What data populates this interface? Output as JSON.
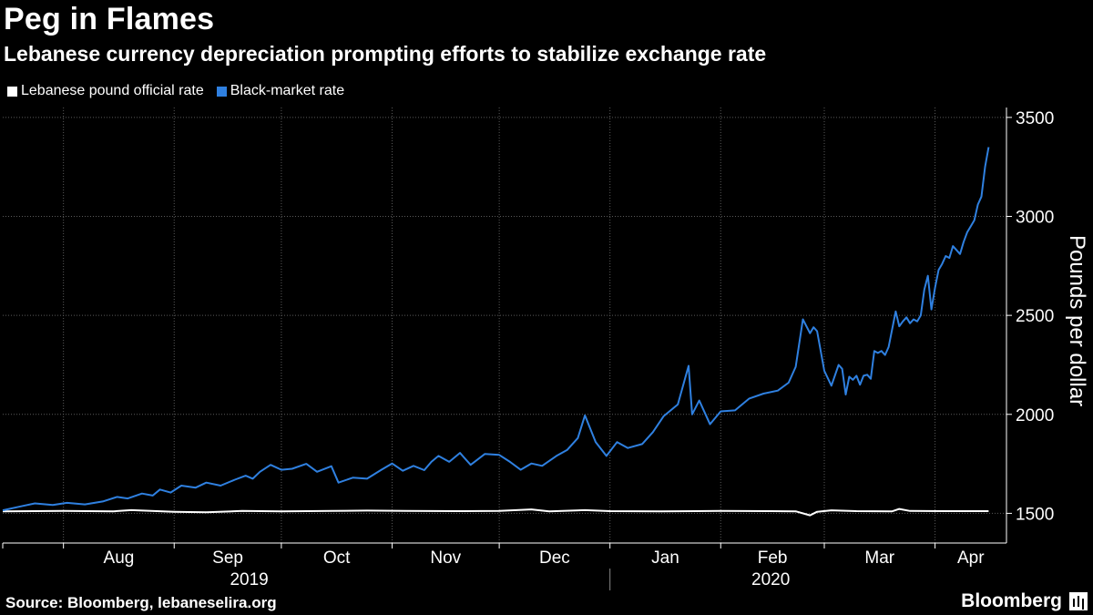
{
  "header": {
    "title": "Peg in Flames",
    "subtitle": "Lebanese currency depreciation prompting efforts to stabilize exchange rate"
  },
  "legend": [
    {
      "label": "Lebanese pound official rate",
      "color": "#ffffff"
    },
    {
      "label": "Black-market rate",
      "color": "#2f80e0"
    }
  ],
  "footer": {
    "source": "Source: Bloomberg, lebaneselira.org",
    "brand": "Bloomberg",
    "brand_icon": "bloomberg-terminal-icon"
  },
  "chart_data": {
    "type": "line",
    "ylabel": "Pounds per dollar",
    "ylim": [
      1350,
      3550
    ],
    "yticks": [
      1500,
      2000,
      2500,
      3000,
      3500
    ],
    "xlim": [
      "2019-07-15",
      "2020-04-21"
    ],
    "month_ticks": [
      {
        "label": "Aug",
        "date": "2019-08-01"
      },
      {
        "label": "Sep",
        "date": "2019-09-01"
      },
      {
        "label": "Oct",
        "date": "2019-10-01"
      },
      {
        "label": "Nov",
        "date": "2019-11-01"
      },
      {
        "label": "Dec",
        "date": "2019-12-01"
      },
      {
        "label": "Jan",
        "date": "2020-01-01"
      },
      {
        "label": "Feb",
        "date": "2020-02-01"
      },
      {
        "label": "Mar",
        "date": "2020-03-01"
      },
      {
        "label": "Apr",
        "date": "2020-04-01"
      }
    ],
    "year_labels": [
      {
        "label": "2019",
        "date": "2019-09-22"
      },
      {
        "label": "2020",
        "date": "2020-02-15"
      }
    ],
    "year_divider": "2020-01-01",
    "grid": true,
    "legend_position": "top-left",
    "series": [
      {
        "name": "Lebanese pound official rate",
        "color": "#ffffff",
        "points": [
          [
            "2019-07-15",
            1510
          ],
          [
            "2019-08-01",
            1512
          ],
          [
            "2019-08-15",
            1510
          ],
          [
            "2019-08-20",
            1516
          ],
          [
            "2019-09-01",
            1508
          ],
          [
            "2019-09-10",
            1505
          ],
          [
            "2019-09-20",
            1512
          ],
          [
            "2019-10-01",
            1510
          ],
          [
            "2019-10-15",
            1512
          ],
          [
            "2019-10-25",
            1514
          ],
          [
            "2019-11-05",
            1512
          ],
          [
            "2019-11-20",
            1511
          ],
          [
            "2019-12-01",
            1512
          ],
          [
            "2019-12-10",
            1520
          ],
          [
            "2019-12-15",
            1510
          ],
          [
            "2019-12-25",
            1516
          ],
          [
            "2020-01-01",
            1511
          ],
          [
            "2020-01-15",
            1510
          ],
          [
            "2020-02-01",
            1512
          ],
          [
            "2020-02-15",
            1511
          ],
          [
            "2020-02-22",
            1510
          ],
          [
            "2020-02-26",
            1490
          ],
          [
            "2020-02-28",
            1508
          ],
          [
            "2020-03-03",
            1515
          ],
          [
            "2020-03-10",
            1511
          ],
          [
            "2020-03-20",
            1510
          ],
          [
            "2020-03-22",
            1522
          ],
          [
            "2020-03-25",
            1512
          ],
          [
            "2020-04-05",
            1511
          ],
          [
            "2020-04-16",
            1511
          ]
        ]
      },
      {
        "name": "Black-market rate",
        "color": "#2f80e0",
        "points": [
          [
            "2019-07-15",
            1515
          ],
          [
            "2019-07-20",
            1535
          ],
          [
            "2019-07-24",
            1550
          ],
          [
            "2019-07-29",
            1542
          ],
          [
            "2019-08-02",
            1553
          ],
          [
            "2019-08-07",
            1545
          ],
          [
            "2019-08-12",
            1560
          ],
          [
            "2019-08-16",
            1583
          ],
          [
            "2019-08-19",
            1575
          ],
          [
            "2019-08-23",
            1600
          ],
          [
            "2019-08-26",
            1590
          ],
          [
            "2019-08-28",
            1620
          ],
          [
            "2019-08-31",
            1605
          ],
          [
            "2019-09-03",
            1640
          ],
          [
            "2019-09-07",
            1630
          ],
          [
            "2019-09-10",
            1655
          ],
          [
            "2019-09-14",
            1640
          ],
          [
            "2019-09-18",
            1670
          ],
          [
            "2019-09-21",
            1690
          ],
          [
            "2019-09-23",
            1675
          ],
          [
            "2019-09-25",
            1710
          ],
          [
            "2019-09-28",
            1745
          ],
          [
            "2019-10-01",
            1720
          ],
          [
            "2019-10-04",
            1725
          ],
          [
            "2019-10-08",
            1750
          ],
          [
            "2019-10-11",
            1710
          ],
          [
            "2019-10-15",
            1738
          ],
          [
            "2019-10-17",
            1655
          ],
          [
            "2019-10-21",
            1680
          ],
          [
            "2019-10-25",
            1675
          ],
          [
            "2019-10-29",
            1720
          ],
          [
            "2019-11-01",
            1752
          ],
          [
            "2019-11-04",
            1715
          ],
          [
            "2019-11-07",
            1740
          ],
          [
            "2019-11-10",
            1718
          ],
          [
            "2019-11-12",
            1760
          ],
          [
            "2019-11-14",
            1790
          ],
          [
            "2019-11-17",
            1760
          ],
          [
            "2019-11-20",
            1805
          ],
          [
            "2019-11-23",
            1745
          ],
          [
            "2019-11-27",
            1800
          ],
          [
            "2019-12-01",
            1795
          ],
          [
            "2019-12-04",
            1760
          ],
          [
            "2019-12-07",
            1720
          ],
          [
            "2019-12-10",
            1752
          ],
          [
            "2019-12-13",
            1740
          ],
          [
            "2019-12-17",
            1790
          ],
          [
            "2019-12-20",
            1820
          ],
          [
            "2019-12-23",
            1880
          ],
          [
            "2019-12-25",
            1995
          ],
          [
            "2019-12-28",
            1860
          ],
          [
            "2019-12-31",
            1790
          ],
          [
            "2020-01-03",
            1860
          ],
          [
            "2020-01-06",
            1830
          ],
          [
            "2020-01-10",
            1850
          ],
          [
            "2020-01-13",
            1910
          ],
          [
            "2020-01-16",
            1990
          ],
          [
            "2020-01-20",
            2050
          ],
          [
            "2020-01-23",
            2245
          ],
          [
            "2020-01-24",
            2000
          ],
          [
            "2020-01-26",
            2070
          ],
          [
            "2020-01-29",
            1950
          ],
          [
            "2020-02-01",
            2015
          ],
          [
            "2020-02-05",
            2020
          ],
          [
            "2020-02-09",
            2080
          ],
          [
            "2020-02-13",
            2105
          ],
          [
            "2020-02-17",
            2120
          ],
          [
            "2020-02-20",
            2160
          ],
          [
            "2020-02-22",
            2240
          ],
          [
            "2020-02-24",
            2480
          ],
          [
            "2020-02-26",
            2410
          ],
          [
            "2020-02-27",
            2440
          ],
          [
            "2020-02-28",
            2420
          ],
          [
            "2020-03-01",
            2220
          ],
          [
            "2020-03-03",
            2145
          ],
          [
            "2020-03-05",
            2250
          ],
          [
            "2020-03-06",
            2230
          ],
          [
            "2020-03-07",
            2100
          ],
          [
            "2020-03-08",
            2190
          ],
          [
            "2020-03-09",
            2175
          ],
          [
            "2020-03-10",
            2195
          ],
          [
            "2020-03-11",
            2150
          ],
          [
            "2020-03-12",
            2195
          ],
          [
            "2020-03-13",
            2200
          ],
          [
            "2020-03-14",
            2180
          ],
          [
            "2020-03-15",
            2320
          ],
          [
            "2020-03-16",
            2310
          ],
          [
            "2020-03-17",
            2320
          ],
          [
            "2020-03-18",
            2300
          ],
          [
            "2020-03-19",
            2340
          ],
          [
            "2020-03-20",
            2430
          ],
          [
            "2020-03-21",
            2520
          ],
          [
            "2020-03-22",
            2445
          ],
          [
            "2020-03-23",
            2470
          ],
          [
            "2020-03-24",
            2490
          ],
          [
            "2020-03-25",
            2460
          ],
          [
            "2020-03-26",
            2480
          ],
          [
            "2020-03-27",
            2470
          ],
          [
            "2020-03-28",
            2500
          ],
          [
            "2020-03-29",
            2630
          ],
          [
            "2020-03-30",
            2700
          ],
          [
            "2020-03-31",
            2530
          ],
          [
            "2020-04-01",
            2640
          ],
          [
            "2020-04-02",
            2730
          ],
          [
            "2020-04-03",
            2760
          ],
          [
            "2020-04-04",
            2800
          ],
          [
            "2020-04-05",
            2790
          ],
          [
            "2020-04-06",
            2850
          ],
          [
            "2020-04-07",
            2830
          ],
          [
            "2020-04-08",
            2810
          ],
          [
            "2020-04-09",
            2870
          ],
          [
            "2020-04-10",
            2920
          ],
          [
            "2020-04-11",
            2950
          ],
          [
            "2020-04-12",
            2980
          ],
          [
            "2020-04-13",
            3060
          ],
          [
            "2020-04-14",
            3100
          ],
          [
            "2020-04-15",
            3250
          ],
          [
            "2020-04-16",
            3350
          ]
        ]
      }
    ]
  }
}
